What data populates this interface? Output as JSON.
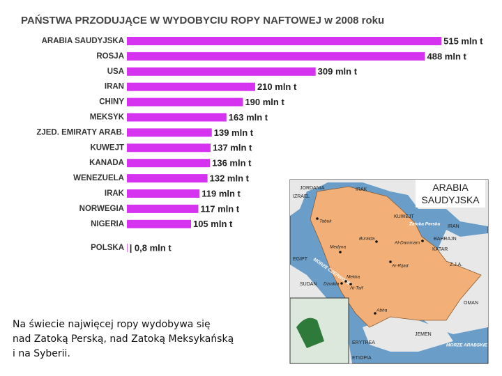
{
  "chart_data": {
    "type": "bar",
    "orientation": "horizontal",
    "title": "PAŃSTWA PRZODUJĄCE W WYDOBYCIU ROPY NAFTOWEJ w 2008 roku",
    "categories": [
      "ARABIA SAUDYJSKA",
      "ROSJA",
      "USA",
      "IRAN",
      "CHINY",
      "MEKSYK",
      "ZJED. EMIRATY ARAB.",
      "KUWEJT",
      "KANADA",
      "WENEZUELA",
      "IRAK",
      "NORWEGIA",
      "NIGERIA",
      "POLSKA"
    ],
    "values": [
      515,
      488,
      309,
      210,
      190,
      163,
      139,
      137,
      136,
      132,
      119,
      117,
      105,
      0.8
    ],
    "value_labels": [
      "515 mln t",
      "488 mln t",
      "309 mln t",
      "210 mln t",
      "190 mln t",
      "163 mln t",
      "139 mln t",
      "137 mln t",
      "136 mln t",
      "132 mln t",
      "119 mln t",
      "117 mln t",
      "105 mln t",
      "| 0,8 mln t"
    ],
    "color": "#d633f0"
  },
  "map": {
    "title": "ARABIA SAUDYJSKA",
    "labels": [
      "JORDANIA",
      "IRAK",
      "IZRAEL",
      "KUWEJT",
      "IRAN",
      "BAHRAJN",
      "KATAR",
      "Z.J.A.",
      "OMAN",
      "JEMEN",
      "EGIPT",
      "SUDAN",
      "ERYTREA",
      "ETIOPIA",
      "Tabuk",
      "Buraida",
      "Medyna",
      "Al-Dammam",
      "Ar-Rijad",
      "Mekka",
      "Dżudda",
      "At-Taif",
      "Abha",
      "Zatoka Perska",
      "MORZE CZERWONE",
      "MORZE ARABSKIE"
    ]
  },
  "caption": [
    "Na świecie najwięcej ropy wydobywa się",
    "nad Zatoką Perską, nad Zatoką Meksykańską",
    "i na Syberii."
  ]
}
